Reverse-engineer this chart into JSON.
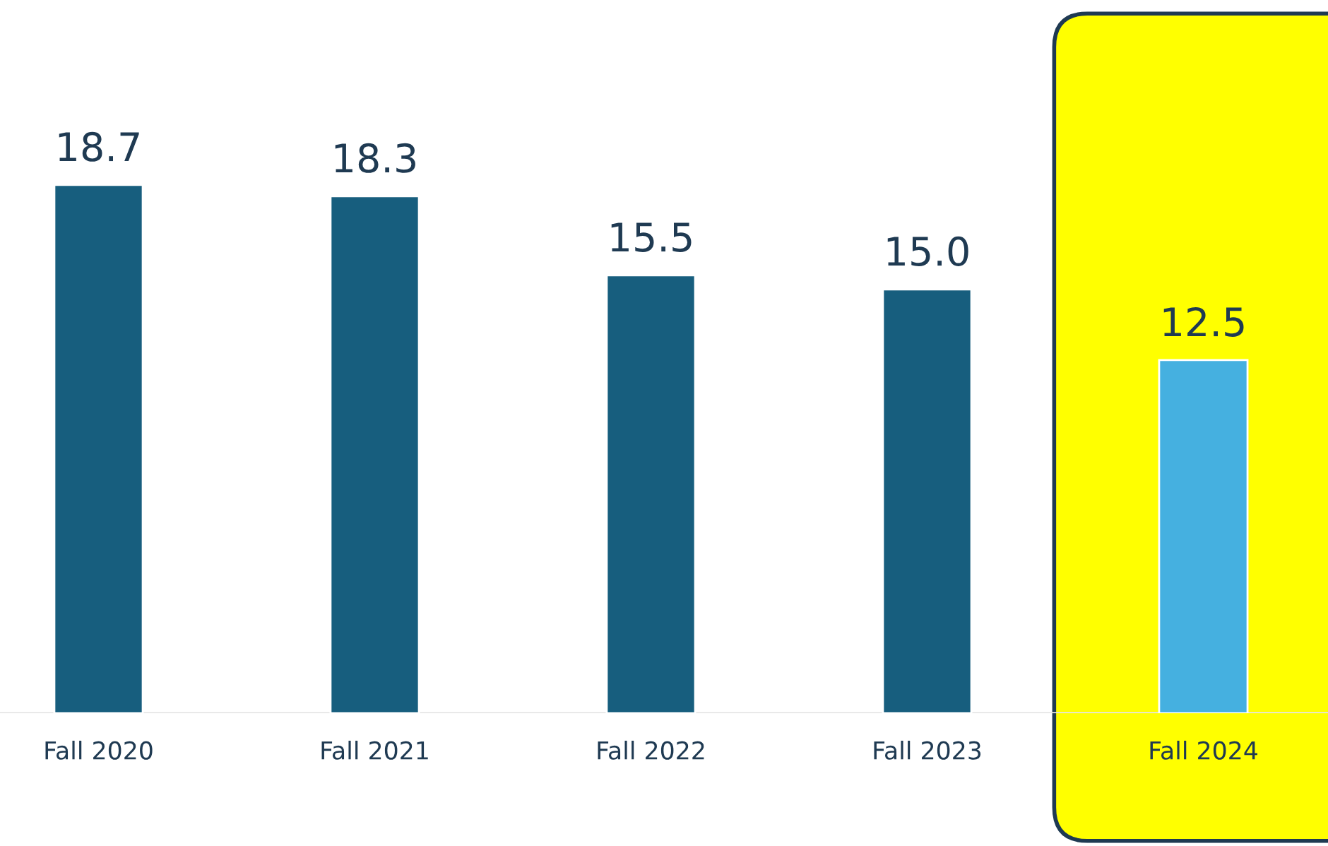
{
  "chart_data": {
    "type": "bar",
    "categories": [
      "Fall 2020",
      "Fall 2021",
      "Fall 2022",
      "Fall 2023",
      "Fall 2024"
    ],
    "values": [
      18.7,
      18.3,
      15.5,
      15.0,
      12.5
    ],
    "colors": [
      "#175e7e",
      "#175e7e",
      "#175e7e",
      "#175e7e",
      "#45b0e0"
    ],
    "value_labels": [
      "18.7",
      "18.3",
      "15.5",
      "15.0",
      "12.5"
    ],
    "bands": [
      {
        "axis": "x",
        "from": "Fall 2024",
        "to": "Fall 2024",
        "color": "#ffff00"
      }
    ],
    "grid": false
  }
}
